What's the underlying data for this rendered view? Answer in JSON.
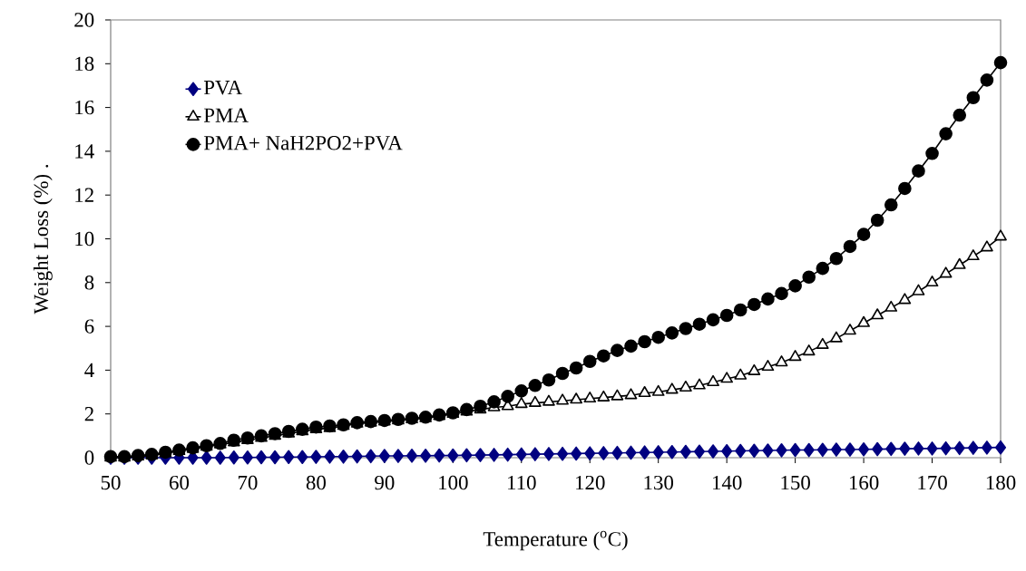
{
  "chart_data": {
    "type": "line",
    "xlabel": "Temperature ($^{o}$C)",
    "ylabel": "Weight Loss (%)   .",
    "x": [
      50,
      52,
      54,
      56,
      58,
      60,
      62,
      64,
      66,
      68,
      70,
      72,
      74,
      76,
      78,
      80,
      82,
      84,
      86,
      88,
      90,
      92,
      94,
      96,
      98,
      100,
      102,
      104,
      106,
      108,
      110,
      112,
      114,
      116,
      118,
      120,
      122,
      124,
      126,
      128,
      130,
      132,
      134,
      136,
      138,
      140,
      142,
      144,
      146,
      148,
      150,
      152,
      154,
      156,
      158,
      160,
      162,
      164,
      166,
      168,
      170,
      172,
      174,
      176,
      178,
      180
    ],
    "xlim": [
      50,
      180
    ],
    "xticks": [
      50,
      60,
      70,
      80,
      90,
      100,
      110,
      120,
      130,
      140,
      150,
      160,
      170,
      180
    ],
    "ylim": [
      0,
      20
    ],
    "yticks": [
      0,
      2,
      4,
      6,
      8,
      10,
      12,
      14,
      16,
      18,
      20
    ],
    "grid": false,
    "legend": "top left",
    "line_style": "solid",
    "series": [
      {
        "name": "PVA",
        "color": "#000080",
        "marker": "diamond",
        "values": [
          0,
          0,
          0,
          0,
          0,
          0,
          0,
          0,
          0,
          0.01,
          0.01,
          0.02,
          0.02,
          0.03,
          0.03,
          0.04,
          0.05,
          0.05,
          0.06,
          0.07,
          0.08,
          0.08,
          0.09,
          0.09,
          0.1,
          0.1,
          0.11,
          0.12,
          0.13,
          0.14,
          0.15,
          0.16,
          0.17,
          0.18,
          0.19,
          0.2,
          0.21,
          0.22,
          0.23,
          0.24,
          0.25,
          0.26,
          0.27,
          0.28,
          0.29,
          0.3,
          0.31,
          0.32,
          0.33,
          0.34,
          0.35,
          0.35,
          0.36,
          0.37,
          0.37,
          0.38,
          0.39,
          0.4,
          0.41,
          0.42,
          0.42,
          0.43,
          0.44,
          0.45,
          0.46,
          0.47
        ]
      },
      {
        "name": "PMA",
        "color": "#000000",
        "marker": "triangle",
        "values": [
          0,
          0,
          0.05,
          0.1,
          0.2,
          0.3,
          0.4,
          0.5,
          0.6,
          0.7,
          0.8,
          0.9,
          1.0,
          1.1,
          1.2,
          1.3,
          1.35,
          1.45,
          1.55,
          1.6,
          1.65,
          1.7,
          1.75,
          1.8,
          1.9,
          2.0,
          2.1,
          2.2,
          2.3,
          2.35,
          2.45,
          2.5,
          2.55,
          2.6,
          2.65,
          2.7,
          2.75,
          2.8,
          2.85,
          2.95,
          3.0,
          3.1,
          3.2,
          3.3,
          3.45,
          3.6,
          3.75,
          3.95,
          4.15,
          4.35,
          4.6,
          4.85,
          5.15,
          5.45,
          5.8,
          6.15,
          6.5,
          6.85,
          7.2,
          7.6,
          8.0,
          8.4,
          8.8,
          9.2,
          9.6,
          10.1
        ]
      },
      {
        "name": "PMA+ NaH2PO2+PVA",
        "color": "#000000",
        "marker": "circle",
        "values": [
          0.05,
          0.05,
          0.1,
          0.15,
          0.25,
          0.35,
          0.45,
          0.55,
          0.65,
          0.8,
          0.9,
          1.0,
          1.1,
          1.2,
          1.3,
          1.4,
          1.45,
          1.5,
          1.6,
          1.65,
          1.7,
          1.75,
          1.8,
          1.85,
          1.95,
          2.05,
          2.2,
          2.35,
          2.55,
          2.8,
          3.05,
          3.3,
          3.55,
          3.85,
          4.1,
          4.4,
          4.65,
          4.9,
          5.1,
          5.3,
          5.5,
          5.7,
          5.9,
          6.1,
          6.3,
          6.5,
          6.75,
          7.0,
          7.25,
          7.5,
          7.85,
          8.25,
          8.65,
          9.1,
          9.65,
          10.2,
          10.85,
          11.55,
          12.3,
          13.1,
          13.9,
          14.8,
          15.65,
          16.45,
          17.25,
          18.05
        ]
      }
    ]
  }
}
